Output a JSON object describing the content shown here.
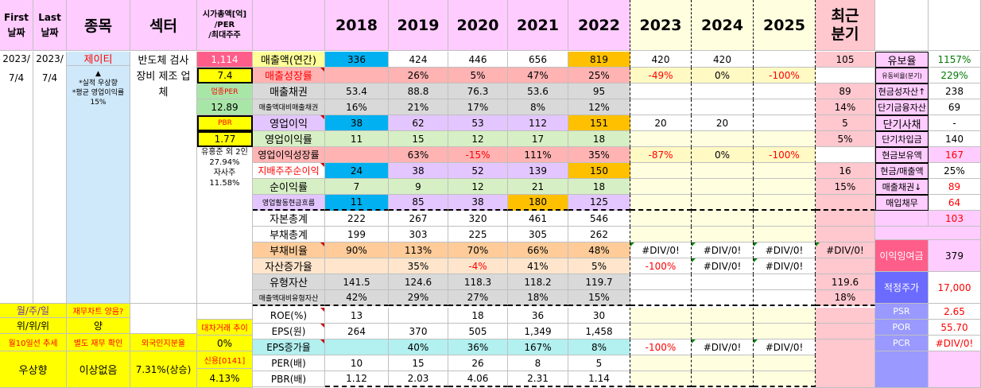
{
  "header": {
    "first": "First\n날짜",
    "last": "Last\n날짜",
    "name": "종목",
    "sector": "섹터",
    "cap": "시가총액[억]\n/PER\n/최대주주",
    "years": [
      "2018",
      "2019",
      "2020",
      "2021",
      "2022",
      "2023",
      "2024",
      "2025"
    ],
    "recent": "최근\n분기"
  },
  "left": {
    "first_date": "2023/",
    "first_date2": "7/4",
    "last_date": "2023/",
    "last_date2": "7/4",
    "company": "제이티",
    "company_note": "▲\n*실적 우상향\n*평균 영업이익률 15%",
    "sector_text": "반도체 검사장비 제조 업체",
    "cap_value": "1,114",
    "per_value": "7.4",
    "sector_per_label": "업종PER",
    "sector_per_value": "12.89",
    "pbr_label": "PBR",
    "pbr_value": "1.77",
    "holder_text": "유홍준 외 2인\n27.94%\n자사주\n11.58%",
    "q1_label": "월/주/일",
    "q1_value": "재무차트 양음?",
    "q2_label": "위/위/위",
    "q2_value": "양",
    "q3_label": "월10일선 추세",
    "q3_value": "별도 재무 확인",
    "q4_label": "우상향",
    "q4_value": "이상없음",
    "loan_label": "대차거래 추이",
    "loan_value": "0%",
    "foreign_label": "외국인지분율",
    "foreign_value": "7.31%(상승)",
    "credit_label": "신용[0141]",
    "credit_value": "4.13%"
  },
  "rows": [
    {
      "label": "매출액(연간)",
      "vals": [
        "336",
        "424",
        "446",
        "656",
        "819",
        "420",
        "420",
        ""
      ],
      "recent": "105"
    },
    {
      "label": "매출성장률",
      "vals": [
        "",
        "26%",
        "5%",
        "47%",
        "25%",
        "-49%",
        "0%",
        "-100%"
      ],
      "recent": ""
    },
    {
      "label": "매출채권",
      "vals": [
        "53.4",
        "88.8",
        "76.3",
        "53.6",
        "95",
        "",
        "",
        ""
      ],
      "recent": "89"
    },
    {
      "label": "매출액대비매출채권",
      "vals": [
        "16%",
        "21%",
        "17%",
        "8%",
        "12%",
        "",
        "",
        ""
      ],
      "recent": "14%"
    },
    {
      "label": "영업이익",
      "vals": [
        "38",
        "62",
        "53",
        "112",
        "151",
        "20",
        "20",
        ""
      ],
      "recent": "5"
    },
    {
      "label": "영업이익률",
      "vals": [
        "11",
        "15",
        "12",
        "17",
        "18",
        "",
        "",
        ""
      ],
      "recent": "5%"
    },
    {
      "label": "영업이익성장률",
      "vals": [
        "",
        "63%",
        "-15%",
        "111%",
        "35%",
        "-87%",
        "0%",
        "-100%"
      ],
      "recent": ""
    },
    {
      "label": "지배주주순이익",
      "vals": [
        "24",
        "38",
        "52",
        "139",
        "150",
        "",
        "",
        ""
      ],
      "recent": "16"
    },
    {
      "label": "순이익률",
      "vals": [
        "7",
        "9",
        "12",
        "21",
        "18",
        "",
        "",
        ""
      ],
      "recent": "15%"
    },
    {
      "label": "영업활동현금흐름",
      "vals": [
        "11",
        "85",
        "38",
        "180",
        "125",
        "",
        "",
        ""
      ],
      "recent": ""
    },
    {
      "label": "자본총계",
      "vals": [
        "222",
        "267",
        "320",
        "461",
        "546",
        "",
        "",
        ""
      ],
      "recent": ""
    },
    {
      "label": "부채총계",
      "vals": [
        "199",
        "303",
        "225",
        "305",
        "262",
        "",
        "",
        ""
      ],
      "recent": ""
    },
    {
      "label": "부채비율",
      "vals": [
        "90%",
        "113%",
        "70%",
        "66%",
        "48%",
        "#DIV/0!",
        "#DIV/0!",
        "#DIV/0!"
      ],
      "recent": "#DIV/0!"
    },
    {
      "label": "자산증가율",
      "vals": [
        "",
        "35%",
        "-4%",
        "41%",
        "5%",
        "-100%",
        "#DIV/0!",
        "#DIV/0!"
      ],
      "recent": ""
    },
    {
      "label": "유형자산",
      "vals": [
        "141.5",
        "124.6",
        "118.3",
        "118.2",
        "119.7",
        "",
        "",
        ""
      ],
      "recent": "119.6"
    },
    {
      "label": "매출액대비유형자산",
      "vals": [
        "42%",
        "29%",
        "27%",
        "18%",
        "15%",
        "",
        "",
        ""
      ],
      "recent": "18%"
    },
    {
      "label": "ROE(%)",
      "vals": [
        "13",
        "",
        "18",
        "36",
        "30",
        "",
        "",
        ""
      ],
      "recent": ""
    },
    {
      "label": "EPS(원)",
      "vals": [
        "264",
        "370",
        "505",
        "1,349",
        "1,458",
        "",
        "",
        ""
      ],
      "recent": ""
    },
    {
      "label": "EPS증가율",
      "vals": [
        "",
        "40%",
        "36%",
        "167%",
        "8%",
        "-100%",
        "#DIV/0!",
        "#DIV/0!"
      ],
      "recent": ""
    },
    {
      "label": "PER(배)",
      "vals": [
        "10",
        "15",
        "26",
        "8",
        "5",
        "",
        "",
        ""
      ],
      "recent": ""
    },
    {
      "label": "PBR(배)",
      "vals": [
        "1.12",
        "2.03",
        "4.06",
        "2.31",
        "1.14",
        "",
        "",
        ""
      ],
      "recent": ""
    }
  ],
  "right": [
    {
      "label": "유보율",
      "value": "1157%"
    },
    {
      "label": "유동비율(분기)",
      "value": "229%"
    },
    {
      "label": "현금성자산↑",
      "value": "238"
    },
    {
      "label": "단기금융자산",
      "value": "69"
    },
    {
      "label": "단기사채",
      "value": "-"
    },
    {
      "label": "단기차입금",
      "value": "140"
    },
    {
      "label": "현금보유액",
      "value": "167"
    },
    {
      "label": "현금/매출액",
      "value": "25%"
    },
    {
      "label": "매출채권↓",
      "value": "89"
    },
    {
      "label": "매입채무",
      "value": "64"
    },
    {
      "label": "",
      "value": "103"
    },
    {
      "label": "이익잉여금",
      "value": "379"
    },
    {
      "label": "적정주가",
      "value": "17,000"
    },
    {
      "label": "PSR",
      "value": "2.65"
    },
    {
      "label": "POR",
      "value": "55.70"
    },
    {
      "label": "PCR",
      "value": "#DIV/0!"
    }
  ],
  "colors": {
    "pink": "#ffccff",
    "blue": "#00b0f0",
    "orange": "#ffc000",
    "cream": "#ffffe0",
    "lightblue": "#cfe8fa",
    "yellow": "#ffff00"
  }
}
